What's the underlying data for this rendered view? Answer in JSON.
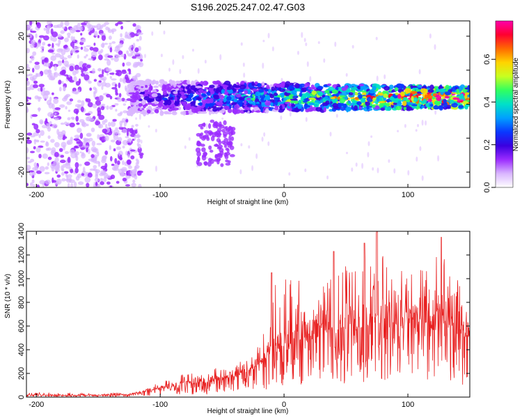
{
  "title": "S196.2025.247.02.47.G03",
  "colors": {
    "snr_line": "#e82020",
    "colormap": [
      "#ffffff",
      "#d9b6ff",
      "#9b2cff",
      "#3a00e0",
      "#0a38ff",
      "#00a0ff",
      "#00e0c8",
      "#30ff60",
      "#c8ff20",
      "#ffd400",
      "#ff6a00",
      "#ff0030",
      "#ff00aa"
    ]
  },
  "chart_data": [
    {
      "type": "heatmap",
      "ylabel": "Frequency (Hz)",
      "xlabel": "Height of straight line (km)",
      "xlim": [
        -208,
        150
      ],
      "ylim": [
        -24.5,
        24.5
      ],
      "xticks": [
        -200,
        -100,
        0,
        100
      ],
      "yticks": [
        20,
        10,
        0,
        -10,
        -20
      ],
      "colorbar": {
        "label": "Normalized spectral amplitude",
        "range": [
          0.0,
          0.78
        ],
        "ticks": [
          "0.0",
          "0.2",
          "0.4",
          "0.6"
        ],
        "tick_values": [
          0.0,
          0.2,
          0.4,
          0.6
        ]
      },
      "features": [
        {
          "name": "noise_region",
          "x_range": [
            -208,
            -125
          ],
          "freq_range": [
            -24.5,
            24.5
          ],
          "amplitude": 0.05
        },
        {
          "name": "signal_band",
          "x_range": [
            -125,
            150
          ],
          "center_freq_hz": 2,
          "half_width_hz": 5,
          "amplitude_start": 0.15,
          "amplitude_end": 0.75
        },
        {
          "name": "low_freq_branch",
          "x_range": [
            -70,
            -40
          ],
          "freq_range": [
            -18,
            -5
          ],
          "amplitude": 0.1
        }
      ]
    },
    {
      "type": "line",
      "ylabel": "SNR (10 * v/v)",
      "xlabel": "Height of straight line (km)",
      "xlim": [
        -208,
        150
      ],
      "ylim": [
        0,
        1400
      ],
      "xticks": [
        -200,
        -100,
        0,
        100
      ],
      "yticks": [
        0,
        200,
        400,
        600,
        800,
        1000,
        1200,
        1400
      ],
      "series": [
        {
          "name": "SNR",
          "x": [
            -208,
            -150,
            -125,
            -115,
            -100,
            -80,
            -60,
            -40,
            -25,
            -15,
            -10,
            0,
            20,
            40,
            60,
            75,
            90,
            110,
            125,
            140,
            150
          ],
          "upper_envelope": [
            40,
            35,
            40,
            60,
            130,
            200,
            230,
            290,
            400,
            650,
            1050,
            1000,
            1000,
            1230,
            1300,
            1400,
            1100,
            1080,
            1350,
            1000,
            650
          ],
          "typical": [
            15,
            15,
            20,
            40,
            70,
            100,
            120,
            170,
            230,
            320,
            380,
            420,
            480,
            540,
            560,
            600,
            580,
            580,
            560,
            520,
            500
          ],
          "peaks": [
            {
              "x": -10,
              "y": 1050
            },
            {
              "x": 40,
              "y": 1230
            },
            {
              "x": 65,
              "y": 1300
            },
            {
              "x": 75,
              "y": 1400
            },
            {
              "x": 127,
              "y": 1350
            }
          ]
        }
      ]
    }
  ]
}
